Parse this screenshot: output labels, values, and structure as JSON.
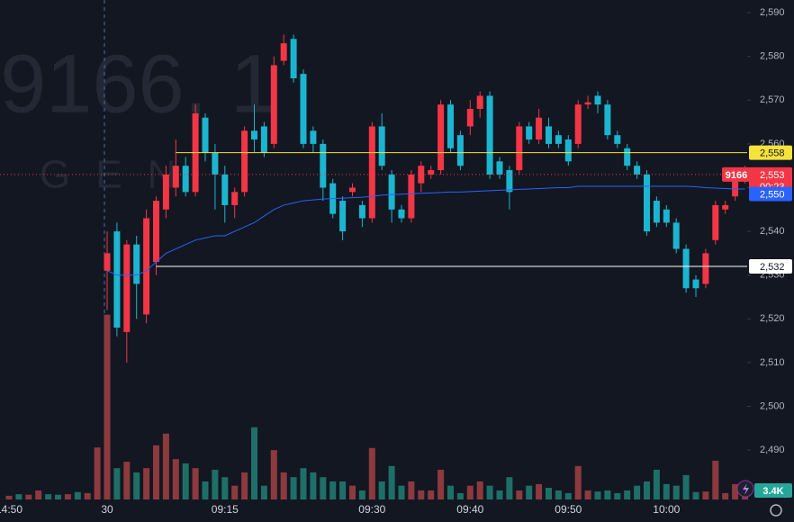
{
  "watermark": {
    "symbol": "9166, 1",
    "name": "GEN"
  },
  "chart_data": {
    "type": "candlestick",
    "up_color": "#f23645",
    "down_color": "#1cb5d0",
    "volume_up_color": "#8c3a3e",
    "volume_down_color": "#1e6f68",
    "open": [
      2531,
      2540,
      2517,
      2537,
      2521,
      2533,
      2545,
      2550,
      2555,
      2549,
      2566,
      2558,
      2553,
      2546,
      2549,
      2563,
      2564,
      2560,
      2579,
      2584,
      2576,
      2563,
      2560,
      2551,
      2547,
      2549,
      2546,
      2543,
      2564,
      2553,
      2545,
      2543,
      2551,
      2553,
      2554,
      2569,
      2562,
      2564,
      2568,
      2571,
      2556,
      2554,
      2554,
      2564,
      2561,
      2564,
      2562,
      2561,
      2560,
      2569,
      2571,
      2569,
      2562,
      2559,
      2555,
      2553,
      2547,
      2545,
      2542,
      2536,
      2529,
      2528,
      2538,
      2545,
      2548,
      2553
    ],
    "high": [
      2540,
      2542,
      2538,
      2539,
      2545,
      2548,
      2555,
      2561,
      2557,
      2569,
      2567,
      2560,
      2555,
      2550,
      2564,
      2569,
      2565,
      2580,
      2585,
      2585,
      2577,
      2564,
      2561,
      2552,
      2548,
      2551,
      2547,
      2565,
      2567,
      2554,
      2546,
      2554,
      2556,
      2555,
      2570,
      2570,
      2563,
      2570,
      2572,
      2572,
      2557,
      2555,
      2565,
      2565,
      2568,
      2566,
      2563,
      2562,
      2570,
      2571,
      2572,
      2570,
      2563,
      2560,
      2556,
      2554,
      2548,
      2546,
      2543,
      2537,
      2530,
      2536,
      2547,
      2547,
      2553,
      2555
    ],
    "low": [
      2522,
      2516,
      2510,
      2520,
      2519,
      2530,
      2543,
      2548,
      2548,
      2548,
      2556,
      2545,
      2542,
      2543,
      2548,
      2558,
      2557,
      2559,
      2578,
      2574,
      2559,
      2558,
      2547,
      2543,
      2538,
      2548,
      2541,
      2542,
      2554,
      2542,
      2542,
      2542,
      2549,
      2552,
      2553,
      2558,
      2554,
      2562,
      2566,
      2552,
      2552,
      2545,
      2553,
      2560,
      2560,
      2559,
      2559,
      2555,
      2559,
      2568,
      2567,
      2561,
      2559,
      2554,
      2552,
      2539,
      2541,
      2541,
      2535,
      2526,
      2525,
      2527,
      2537,
      2544,
      2547,
      2551
    ],
    "close": [
      2535,
      2518,
      2537,
      2528,
      2543,
      2547,
      2553,
      2555,
      2549,
      2567,
      2558,
      2553,
      2546,
      2549,
      2563,
      2561,
      2558,
      2578,
      2583,
      2575,
      2560,
      2560,
      2550,
      2544,
      2540,
      2550,
      2543,
      2564,
      2555,
      2545,
      2543,
      2553,
      2555,
      2554,
      2569,
      2559,
      2555,
      2568,
      2571,
      2553,
      2553,
      2549,
      2564,
      2561,
      2566,
      2560,
      2560,
      2556,
      2569,
      2569.5,
      2569,
      2562,
      2560,
      2555,
      2553,
      2540,
      2542,
      2542,
      2536,
      2527,
      2527,
      2535,
      2546,
      2546,
      2552,
      2553
    ],
    "vwap": {
      "color": "#2962ff",
      "values": [
        2531,
        2530,
        2530,
        2530,
        2531,
        2533,
        2535,
        2536,
        2537,
        2538,
        2538.5,
        2539,
        2539,
        2540,
        2541,
        2542,
        2543.5,
        2545,
        2546,
        2546.5,
        2547,
        2547.2,
        2547.4,
        2547.5,
        2547.6,
        2547.7,
        2547.8,
        2548,
        2548.3,
        2548.4,
        2548.5,
        2548.6,
        2548.7,
        2548.8,
        2548.9,
        2549,
        2549,
        2549.1,
        2549.2,
        2549.3,
        2549.4,
        2549.5,
        2549.6,
        2549.7,
        2549.8,
        2549.9,
        2550,
        2550,
        2550.3,
        2550.3,
        2550.3,
        2550.3,
        2550.3,
        2550.3,
        2550.3,
        2550.3,
        2550.3,
        2550.3,
        2550.3,
        2550.3,
        2550.2,
        2550,
        2549.9,
        2549.8,
        2549.7,
        2549.7
      ]
    },
    "volume": {
      "values": [
        34800,
        5900,
        7100,
        5100,
        5900,
        10200,
        12400,
        7600,
        6800,
        5900,
        3400,
        5600,
        4200,
        2600,
        5100,
        13600,
        2600,
        9300,
        5100,
        4200,
        5900,
        5100,
        4200,
        3400,
        3400,
        2600,
        1700,
        9700,
        3400,
        6300,
        2600,
        3400,
        1700,
        1700,
        5600,
        2600,
        1200,
        2600,
        3400,
        2600,
        1700,
        4200,
        1700,
        2600,
        2900,
        2200,
        1700,
        1200,
        6300,
        1700,
        1500,
        1700,
        1200,
        1700,
        2600,
        3400,
        5600,
        2900,
        2600,
        4600,
        1400,
        1500,
        7300,
        1200,
        2900,
        3400
      ],
      "last_label": "3.4K"
    },
    "pre_volume": {
      "values": [
        700,
        1000,
        900,
        1700,
        1000,
        900,
        1000,
        1400,
        1200,
        9800
      ],
      "colors": [
        "#8c3a3e",
        "#1e6f68",
        "#8c3a3e",
        "#8c3a3e",
        "#1e6f68",
        "#1e6f68",
        "#8c3a3e",
        "#1e6f68",
        "#8c3a3e",
        "#8c3a3e"
      ]
    },
    "ylim": [
      2478.7,
      2592.9
    ],
    "yticks": [
      {
        "value": 2590,
        "label": "2,590"
      },
      {
        "value": 2580,
        "label": "2,580"
      },
      {
        "value": 2570,
        "label": "2,570"
      },
      {
        "value": 2560,
        "label": "2,560"
      },
      {
        "value": 2550,
        "label": "2,550"
      },
      {
        "value": 2540,
        "label": "2,540"
      },
      {
        "value": 2530,
        "label": "2,530"
      },
      {
        "value": 2520,
        "label": "2,520"
      },
      {
        "value": 2510,
        "label": "2,510"
      },
      {
        "value": 2500,
        "label": "2,500"
      },
      {
        "value": 2490,
        "label": "2,490"
      }
    ],
    "xticks": [
      {
        "value": -10,
        "label": "14:50"
      },
      {
        "value": 0,
        "label": "30"
      },
      {
        "value": 12,
        "label": "09:15"
      },
      {
        "value": 27,
        "label": "09:30"
      },
      {
        "value": 37,
        "label": "09:40"
      },
      {
        "value": 47,
        "label": "09:50"
      },
      {
        "value": 57,
        "label": "10:00"
      }
    ],
    "levels": [
      {
        "value": 2558,
        "label": "2,558",
        "color": "#f5e23b",
        "start": 7
      },
      {
        "value": 2532,
        "label": "2,532",
        "color": "#ffffff",
        "start": 5
      }
    ],
    "last_price": {
      "value": 2553,
      "label": "2,553",
      "symbol": "9166",
      "countdown": "00:23"
    },
    "vwap_tag": {
      "value": 2550,
      "label": "2,550"
    }
  }
}
